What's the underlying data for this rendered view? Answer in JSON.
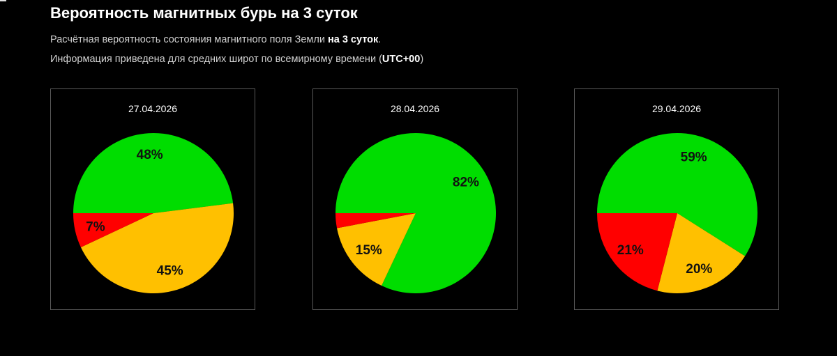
{
  "header": {
    "title": "Вероятность магнитных бурь на 3 суток",
    "line1_prefix": "Расчётная вероятность состояния магнитного поля Земли ",
    "line1_bold": "на 3 суток",
    "line1_suffix": ".",
    "line2_prefix": "Информация приведена для средних широт по всемирному времени (",
    "line2_bold": "UTC+00",
    "line2_suffix": ")"
  },
  "colors": {
    "quiet": "#00DD00",
    "unsettled": "#FFC000",
    "storm": "#FF0000",
    "background": "#000000",
    "card_border": "#5A5A5A"
  },
  "chart_data": [
    {
      "type": "pie",
      "title": "27.04.2026",
      "start_angle_deg": 180,
      "direction": "clockwise",
      "slices": [
        {
          "name": "green",
          "value": 48,
          "label": "48%",
          "color": "#00DD00"
        },
        {
          "name": "yellow",
          "value": 45,
          "label": "45%",
          "color": "#FFC000"
        },
        {
          "name": "red",
          "value": 7,
          "label": "7%",
          "color": "#FF0000"
        }
      ]
    },
    {
      "type": "pie",
      "title": "28.04.2026",
      "start_angle_deg": 180,
      "direction": "clockwise",
      "slices": [
        {
          "name": "green",
          "value": 82,
          "label": "82%",
          "color": "#00DD00"
        },
        {
          "name": "yellow",
          "value": 15,
          "label": "15%",
          "color": "#FFC000"
        },
        {
          "name": "red",
          "value": 3,
          "label": "",
          "color": "#FF0000"
        }
      ]
    },
    {
      "type": "pie",
      "title": "29.04.2026",
      "start_angle_deg": 180,
      "direction": "clockwise",
      "slices": [
        {
          "name": "green",
          "value": 59,
          "label": "59%",
          "color": "#00DD00"
        },
        {
          "name": "yellow",
          "value": 20,
          "label": "20%",
          "color": "#FFC000"
        },
        {
          "name": "red",
          "value": 21,
          "label": "21%",
          "color": "#FF0000"
        }
      ]
    }
  ]
}
